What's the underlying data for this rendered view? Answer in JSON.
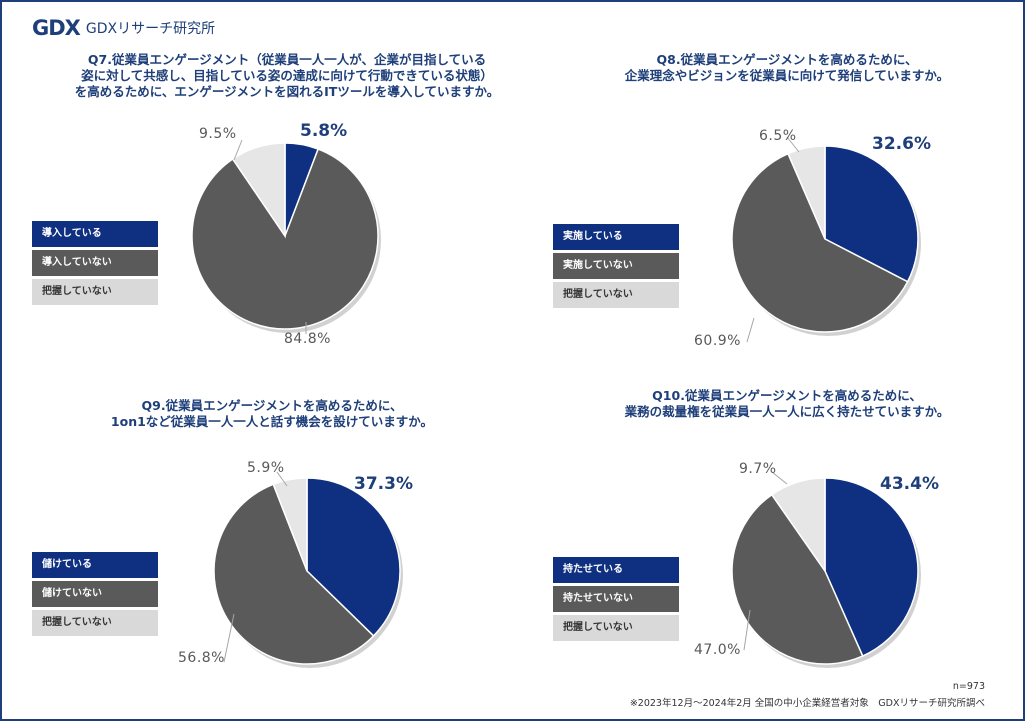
{
  "brand": {
    "logo": "GDX",
    "name": "GDXリサーチ研究所"
  },
  "footer": {
    "n": "n=973",
    "note": "※2023年12月～2024年2月 全国の中小企業経営者対象　GDXリサーチ研究所調べ"
  },
  "colors": {
    "primary": "#0f2f80",
    "secondary": "#5a5a5a",
    "tertiary": "#e6e6e6",
    "title": "#1e3f79"
  },
  "chart_data": [
    {
      "type": "pie",
      "title": [
        "Q7.従業員エンゲージメント（従業員一人一人が、企業が目指している",
        "姿に対して共感し、目指している姿の達成に向けて行動できている状態）",
        "を高めるために、エンゲージメントを図れるITツールを導入していますか。"
      ],
      "labels": [
        "導入している",
        "導入していない",
        "把握していない"
      ],
      "values": [
        5.8,
        84.8,
        9.5
      ],
      "value_labels": [
        "5.8%",
        "84.8%",
        "9.5%"
      ]
    },
    {
      "type": "pie",
      "title": [
        "Q8.従業員エンゲージメントを高めるために、",
        "企業理念やビジョンを従業員に向けて発信していますか。"
      ],
      "labels": [
        "実施している",
        "実施していない",
        "把握していない"
      ],
      "values": [
        32.6,
        60.9,
        6.5
      ],
      "value_labels": [
        "32.6%",
        "60.9%",
        "6.5%"
      ]
    },
    {
      "type": "pie",
      "title": [
        "Q9.従業員エンゲージメントを高めるために、",
        "1on1など従業員一人一人と話す機会を設けていますか。"
      ],
      "labels": [
        "儲けている",
        "儲けていない",
        "把握していない"
      ],
      "values": [
        37.3,
        56.8,
        5.9
      ],
      "value_labels": [
        "37.3%",
        "56.8%",
        "5.9%"
      ]
    },
    {
      "type": "pie",
      "title": [
        "Q10.従業員エンゲージメントを高めるために、",
        "業務の裁量権を従業員一人一人に広く持たせていますか。"
      ],
      "labels": [
        "持たせている",
        "持たせていない",
        "把握していない"
      ],
      "values": [
        43.4,
        47.0,
        9.7
      ],
      "value_labels": [
        "43.4%",
        "47.0%",
        "9.7%"
      ]
    }
  ]
}
